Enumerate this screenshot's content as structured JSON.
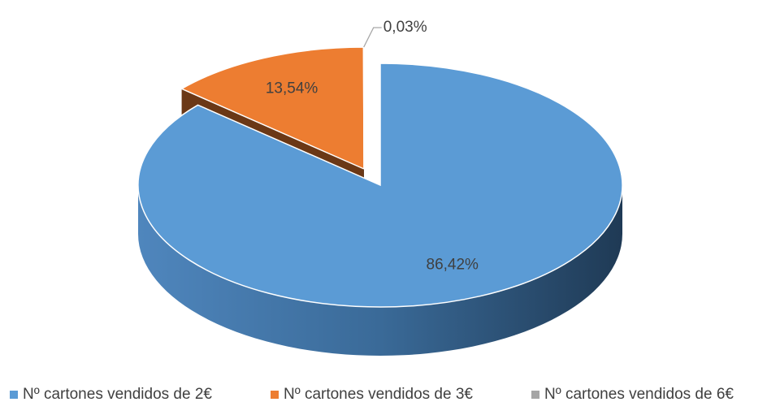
{
  "chart_data": {
    "type": "pie",
    "categories": [
      "Nº cartones vendidos de 2€",
      "Nº cartones vendidos de 3€",
      "Nº cartones vendidos de 6€"
    ],
    "values": [
      86.42,
      13.54,
      0.03
    ],
    "value_labels": [
      "86,42%",
      "13,54%",
      "0,03%"
    ],
    "colors": [
      "#5b9bd5",
      "#ed7d31",
      "#a5a5a5"
    ],
    "legend": "bottom"
  }
}
